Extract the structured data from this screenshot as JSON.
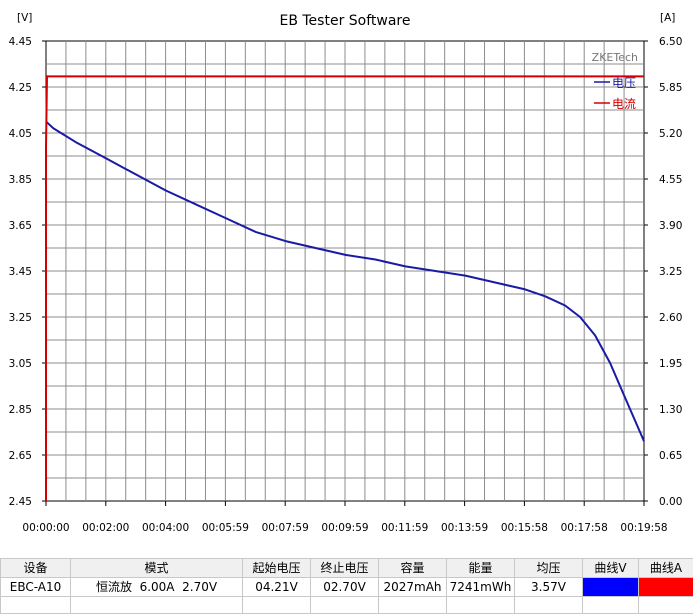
{
  "chart_data": {
    "type": "line",
    "title": "EB Tester Software",
    "watermark": "ZKETech",
    "ylabel_left": "[V]",
    "ylabel_right": "[A]",
    "ylim_left": [
      2.45,
      4.45
    ],
    "ylim_right": [
      0.0,
      6.5
    ],
    "yticks_left": [
      "4.45",
      "4.25",
      "4.05",
      "3.85",
      "3.65",
      "3.45",
      "3.25",
      "3.05",
      "2.85",
      "2.65",
      "2.45"
    ],
    "yticks_right": [
      "6.50",
      "5.85",
      "5.20",
      "4.55",
      "3.90",
      "3.25",
      "2.60",
      "1.95",
      "1.30",
      "0.65",
      "0.00"
    ],
    "xlim": [
      0,
      1198
    ],
    "xticks": [
      "00:00:00",
      "00:02:00",
      "00:04:00",
      "00:05:59",
      "00:07:59",
      "00:09:59",
      "00:11:59",
      "00:13:59",
      "00:15:58",
      "00:17:58",
      "00:19:58"
    ],
    "grid": true,
    "legend_position": "top-right",
    "series": [
      {
        "name": "电压",
        "axis": "left",
        "color": "#1a1aa6",
        "x": [
          0,
          5,
          15,
          30,
          60,
          120,
          180,
          240,
          300,
          360,
          420,
          480,
          540,
          600,
          660,
          720,
          780,
          840,
          900,
          960,
          1000,
          1040,
          1070,
          1100,
          1130,
          1160,
          1180,
          1190,
          1198
        ],
        "y": [
          4.1,
          4.09,
          4.07,
          4.05,
          4.01,
          3.94,
          3.87,
          3.8,
          3.74,
          3.68,
          3.62,
          3.58,
          3.55,
          3.52,
          3.5,
          3.47,
          3.45,
          3.43,
          3.4,
          3.37,
          3.34,
          3.3,
          3.25,
          3.17,
          3.05,
          2.9,
          2.8,
          2.75,
          2.71
        ]
      },
      {
        "name": "电流",
        "axis": "right",
        "color": "#d40000",
        "x": [
          0,
          0,
          2,
          1198
        ],
        "y": [
          0.0,
          5.0,
          6.0,
          6.0
        ]
      }
    ]
  },
  "table": {
    "headers": [
      "设备",
      "模式",
      "起始电压",
      "终止电压",
      "容量",
      "能量",
      "均压",
      "曲线V",
      "曲线A"
    ],
    "row": [
      "EBC-A10",
      "恒流放  6.00A  2.70V",
      "04.21V",
      "02.70V",
      "2027mAh",
      "7241mWh",
      "3.57V",
      "",
      ""
    ],
    "curve_colors": [
      "#0000ff",
      "#ff0000"
    ]
  }
}
